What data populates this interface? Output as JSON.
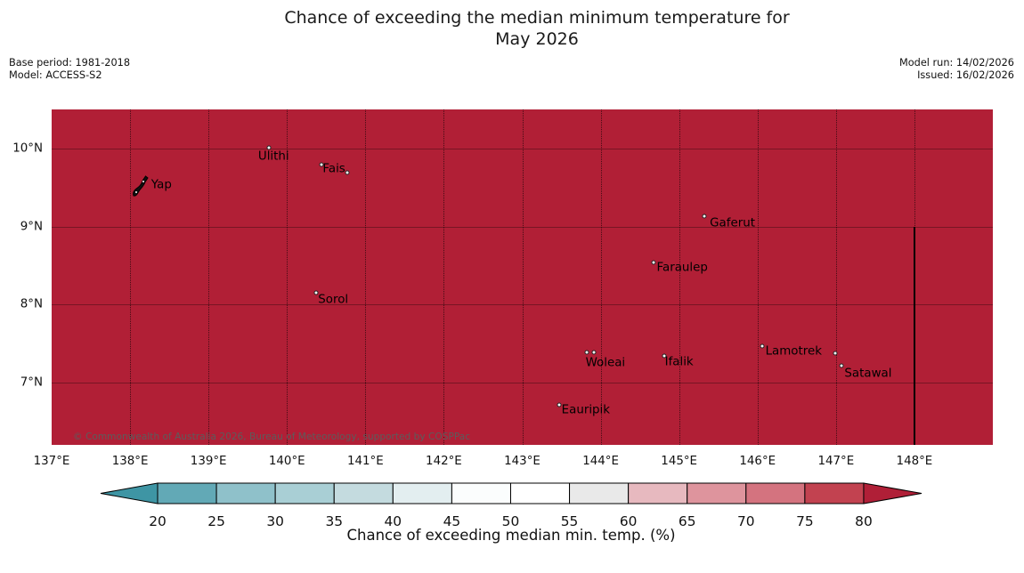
{
  "title": {
    "line1": "Chance of exceeding the median minimum temperature for",
    "line2": "May 2026"
  },
  "meta_left": {
    "base_period": "Base period: 1981-2018",
    "model": "Model: ACCESS-S2"
  },
  "meta_right": {
    "model_run": "Model run: 14/02/2026",
    "issued": "Issued: 16/02/2026"
  },
  "map": {
    "fill_color": "#b11f36",
    "extent": {
      "lon_min": 137.0,
      "lon_max": 149.0,
      "lat_min": 6.2,
      "lat_max": 10.5
    },
    "lon_gridlines": [
      138,
      139,
      140,
      141,
      142,
      143,
      144,
      145,
      146,
      147,
      148
    ],
    "lat_gridlines": [
      10,
      9,
      8,
      7
    ],
    "lon_ticks": [
      {
        "value": 137,
        "label": "137°E"
      },
      {
        "value": 138,
        "label": "138°E"
      },
      {
        "value": 139,
        "label": "139°E"
      },
      {
        "value": 140,
        "label": "140°E"
      },
      {
        "value": 141,
        "label": "141°E"
      },
      {
        "value": 142,
        "label": "142°E"
      },
      {
        "value": 143,
        "label": "143°E"
      },
      {
        "value": 144,
        "label": "144°E"
      },
      {
        "value": 145,
        "label": "145°E"
      },
      {
        "value": 146,
        "label": "146°E"
      },
      {
        "value": 147,
        "label": "147°E"
      },
      {
        "value": 148,
        "label": "148°E"
      }
    ],
    "lat_ticks": [
      {
        "value": 10,
        "label": "10°N"
      },
      {
        "value": 9,
        "label": "9°N"
      },
      {
        "value": 8,
        "label": "8°N"
      },
      {
        "value": 7,
        "label": "7°N"
      }
    ],
    "boundary_line": {
      "lon": 148,
      "lat_from": 9.0,
      "lat_to": 6.2
    },
    "places": [
      {
        "name": "Ulithi",
        "label_lon": 139.83,
        "label_lat": 9.9,
        "dots": [
          {
            "lon": 139.77,
            "lat": 10.01
          }
        ]
      },
      {
        "name": "Fais",
        "label_lon": 140.6,
        "label_lat": 9.74,
        "dots": [
          {
            "lon": 140.44,
            "lat": 9.79
          },
          {
            "lon": 140.77,
            "lat": 9.69
          }
        ]
      },
      {
        "name": "Yap",
        "label_lon": 138.4,
        "label_lat": 9.53,
        "dots": []
      },
      {
        "name": "Gaferut",
        "label_lon": 145.68,
        "label_lat": 9.04,
        "dots": [
          {
            "lon": 145.32,
            "lat": 9.13
          }
        ]
      },
      {
        "name": "Faraulep",
        "label_lon": 145.04,
        "label_lat": 8.47,
        "dots": [
          {
            "lon": 144.67,
            "lat": 8.54
          }
        ]
      },
      {
        "name": "Sorol",
        "label_lon": 140.59,
        "label_lat": 8.06,
        "dots": [
          {
            "lon": 140.37,
            "lat": 8.15
          }
        ]
      },
      {
        "name": "Woleai",
        "label_lon": 144.06,
        "label_lat": 7.25,
        "dots": [
          {
            "lon": 143.82,
            "lat": 7.39
          },
          {
            "lon": 143.91,
            "lat": 7.39
          }
        ]
      },
      {
        "name": "Ifalik",
        "label_lon": 145.0,
        "label_lat": 7.26,
        "dots": [
          {
            "lon": 144.81,
            "lat": 7.34
          }
        ]
      },
      {
        "name": "Lamotrek",
        "label_lon": 146.46,
        "label_lat": 7.4,
        "dots": [
          {
            "lon": 146.06,
            "lat": 7.47
          },
          {
            "lon": 146.99,
            "lat": 7.38
          }
        ]
      },
      {
        "name": "Satawal",
        "label_lon": 147.41,
        "label_lat": 7.11,
        "dots": [
          {
            "lon": 147.07,
            "lat": 7.22
          }
        ]
      },
      {
        "name": "Eauripik",
        "label_lon": 143.81,
        "label_lat": 6.65,
        "dots": [
          {
            "lon": 143.47,
            "lat": 6.71
          }
        ]
      }
    ],
    "copyright": "© Commonwealth of Australia 2026, Bureau of Meteorology, supported by COSPPac"
  },
  "colorbar": {
    "label": "Chance of exceeding median min. temp. (%)",
    "ticks": [
      20,
      25,
      30,
      35,
      40,
      45,
      50,
      55,
      60,
      65,
      70,
      75,
      80
    ],
    "segments": [
      {
        "from": 20,
        "to": 25,
        "color": "#62a9b6"
      },
      {
        "from": 25,
        "to": 30,
        "color": "#8fc1ca"
      },
      {
        "from": 30,
        "to": 35,
        "color": "#a9cfd5"
      },
      {
        "from": 35,
        "to": 40,
        "color": "#c4dbdf"
      },
      {
        "from": 40,
        "to": 45,
        "color": "#e3eef0"
      },
      {
        "from": 45,
        "to": 50,
        "color": "#fbfdfd"
      },
      {
        "from": 50,
        "to": 55,
        "color": "#ffffff"
      },
      {
        "from": 55,
        "to": 60,
        "color": "#e9e9e9"
      },
      {
        "from": 60,
        "to": 65,
        "color": "#e7b9bf"
      },
      {
        "from": 65,
        "to": 70,
        "color": "#de949d"
      },
      {
        "from": 70,
        "to": 75,
        "color": "#d4737f"
      },
      {
        "from": 75,
        "to": 80,
        "color": "#c24250"
      }
    ],
    "left_arrow_color": "#3e95a4",
    "right_arrow_color": "#b01f37"
  }
}
